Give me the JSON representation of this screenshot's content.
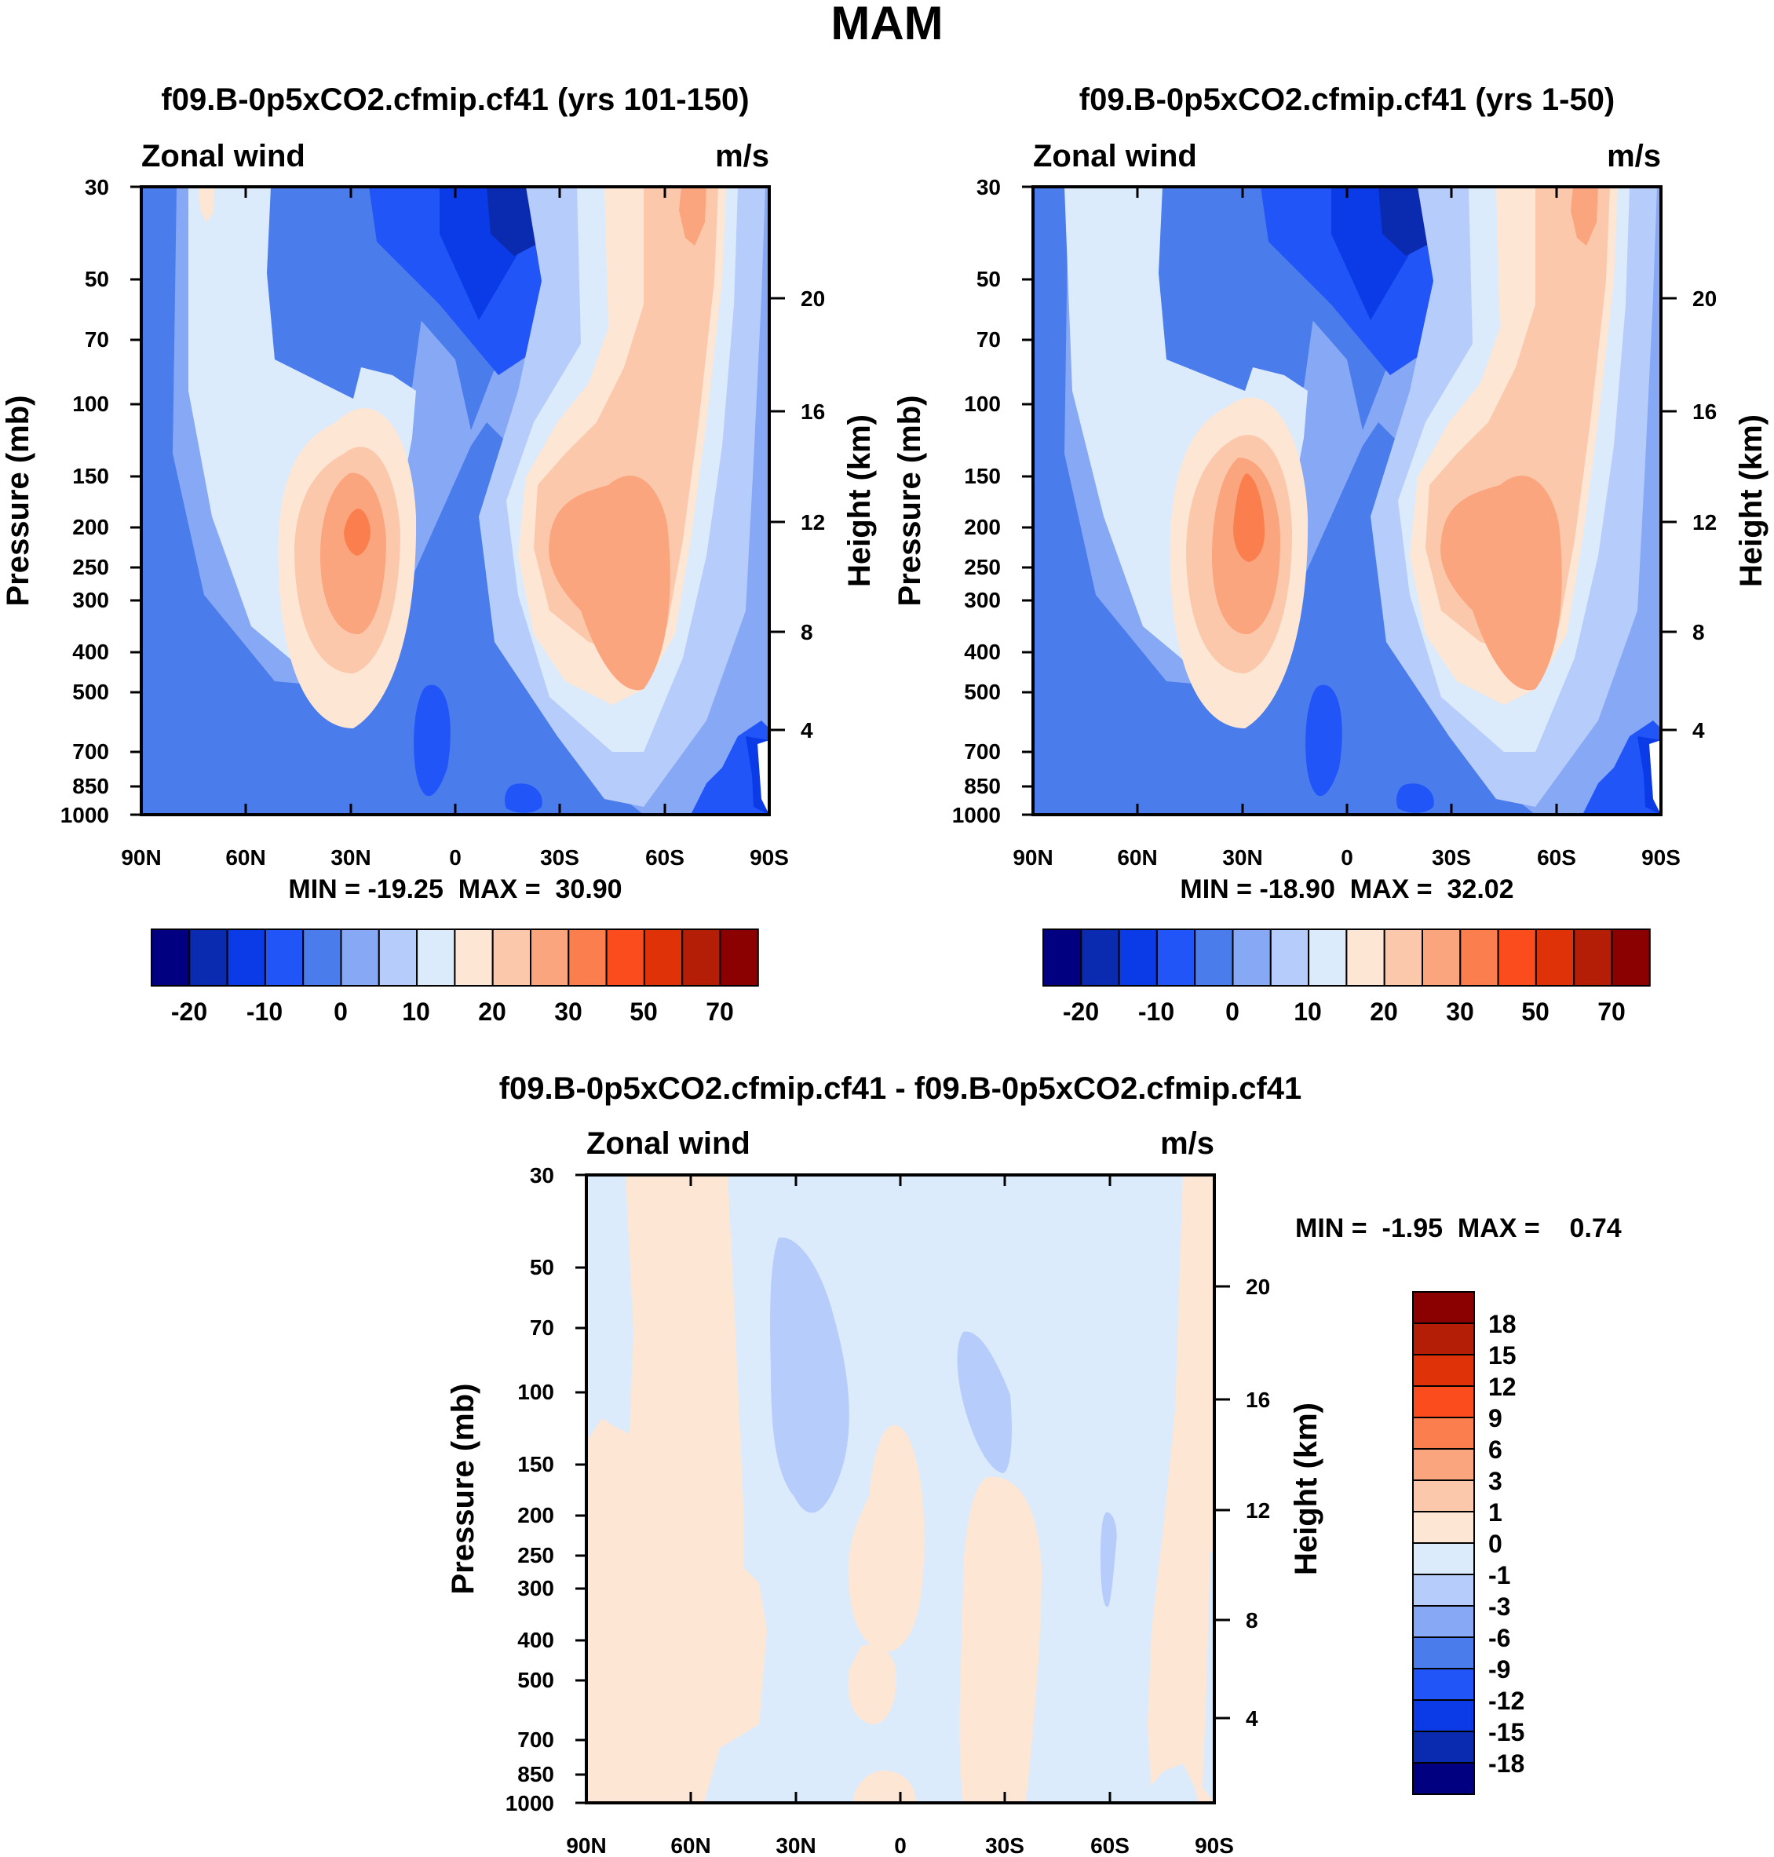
{
  "figure": {
    "title": "MAM"
  },
  "panels": {
    "top_left": {
      "title": "f09.B-0p5xCO2.cfmip.cf41 (yrs 101-150)",
      "left_label": "Zonal wind",
      "right_label": "m/s",
      "y_title": "Pressure (mb)",
      "y2_title": "Height (km)",
      "stats": "MIN = -19.25  MAX =  30.90"
    },
    "top_right": {
      "title": "f09.B-0p5xCO2.cfmip.cf41 (yrs 1-50)",
      "left_label": "Zonal wind",
      "right_label": "m/s",
      "y_title": "Pressure (mb)",
      "y2_title": "Height (km)",
      "stats": "MIN = -18.90  MAX =  32.02"
    },
    "bottom": {
      "title": "f09.B-0p5xCO2.cfmip.cf41 - f09.B-0p5xCO2.cfmip.cf41",
      "left_label": "Zonal wind",
      "right_label": "m/s",
      "y_title": "Pressure (mb)",
      "y2_title": "Height (km)",
      "stats": "MIN =  -1.95  MAX =    0.74"
    }
  },
  "chart_data": [
    {
      "type": "contour",
      "panel": "top_left",
      "title": "f09.B-0p5xCO2.cfmip.cf41 (yrs 101-150)",
      "variable": "Zonal wind",
      "units": "m/s",
      "x_ticks": [
        "90N",
        "60N",
        "30N",
        "0",
        "30S",
        "60S",
        "90S"
      ],
      "x_range": [
        90,
        -90
      ],
      "y_ticks": [
        30,
        50,
        70,
        100,
        150,
        200,
        250,
        300,
        400,
        500,
        700,
        850,
        1000
      ],
      "y_range_mb": [
        1000,
        30
      ],
      "y2_ticks_km": [
        4,
        8,
        12,
        16,
        20
      ],
      "min": -19.25,
      "max": 30.9,
      "features": [
        {
          "lat": -17,
          "p_mb": 35,
          "value": -20
        },
        {
          "lat": 30,
          "p_mb": 200,
          "value": 25
        },
        {
          "lat": -50,
          "p_mb": 220,
          "value": 20
        },
        {
          "lat": -65,
          "p_mb": 35,
          "value": 15
        },
        {
          "lat": 6,
          "p_mb": 600,
          "value": -10
        }
      ]
    },
    {
      "type": "contour",
      "panel": "top_right",
      "title": "f09.B-0p5xCO2.cfmip.cf41 (yrs 1-50)",
      "variable": "Zonal wind",
      "units": "m/s",
      "x_ticks": [
        "90N",
        "60N",
        "30N",
        "0",
        "30S",
        "60S",
        "90S"
      ],
      "x_range": [
        90,
        -90
      ],
      "y_ticks": [
        30,
        50,
        70,
        100,
        150,
        200,
        250,
        300,
        400,
        500,
        700,
        850,
        1000
      ],
      "y_range_mb": [
        1000,
        30
      ],
      "y2_ticks_km": [
        4,
        8,
        12,
        16,
        20
      ],
      "min": -18.9,
      "max": 32.02,
      "features": [
        {
          "lat": -17,
          "p_mb": 35,
          "value": -20
        },
        {
          "lat": 30,
          "p_mb": 190,
          "value": 25
        },
        {
          "lat": -50,
          "p_mb": 220,
          "value": 20
        },
        {
          "lat": -65,
          "p_mb": 35,
          "value": 15
        },
        {
          "lat": 6,
          "p_mb": 600,
          "value": -10
        }
      ]
    },
    {
      "type": "contour",
      "panel": "bottom",
      "title": "f09.B-0p5xCO2.cfmip.cf41 - f09.B-0p5xCO2.cfmip.cf41",
      "variable": "Zonal wind",
      "units": "m/s",
      "x_ticks": [
        "90N",
        "60N",
        "30N",
        "0",
        "30S",
        "60S",
        "90S"
      ],
      "x_range": [
        90,
        -90
      ],
      "y_ticks": [
        30,
        50,
        70,
        100,
        150,
        200,
        250,
        300,
        400,
        500,
        700,
        850,
        1000
      ],
      "y_range_mb": [
        1000,
        30
      ],
      "y2_ticks_km": [
        4,
        8,
        12,
        16,
        20
      ],
      "min": -1.95,
      "max": 0.74
    }
  ],
  "colorbars": {
    "top": {
      "colors": [
        "#000080",
        "#0a2bb0",
        "#0a3be6",
        "#2255f8",
        "#4a7cec",
        "#86a8f5",
        "#b6cdfb",
        "#dcebfc",
        "#fde6d4",
        "#fcc8ab",
        "#fba57e",
        "#fb7e4e",
        "#fa4c1c",
        "#e03208",
        "#b41e06",
        "#8b0000"
      ],
      "labels": [
        "-20",
        "-10",
        "0",
        "10",
        "20",
        "30",
        "50",
        "70"
      ]
    },
    "bottom": {
      "colors": [
        "#8b0000",
        "#b41e06",
        "#e03208",
        "#fa4c1c",
        "#fb7e4e",
        "#fba57e",
        "#fcc8ab",
        "#fde6d4",
        "#dcebfc",
        "#b6cdfb",
        "#86a8f5",
        "#4a7cec",
        "#2255f8",
        "#0a3be6",
        "#0a2bb0",
        "#000080"
      ],
      "labels": [
        "18",
        "15",
        "12",
        "9",
        "6",
        "3",
        "1",
        "0",
        "-1",
        "-3",
        "-6",
        "-9",
        "-12",
        "-15",
        "-18"
      ]
    }
  }
}
